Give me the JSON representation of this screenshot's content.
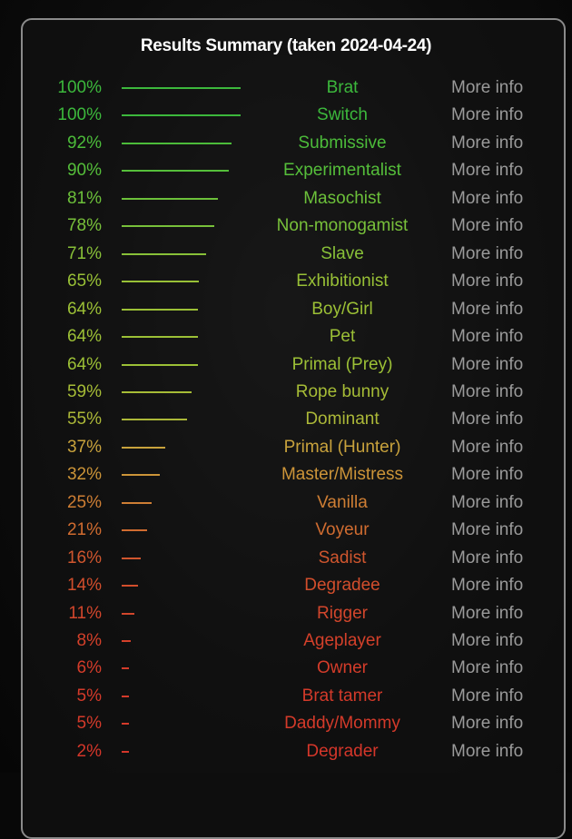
{
  "title": "Results Summary (taken 2024-04-24)",
  "more_label": "More info",
  "results": [
    {
      "pct": 100,
      "label": "100%",
      "name": "Brat",
      "color": "#3cb83c"
    },
    {
      "pct": 100,
      "label": "100%",
      "name": "Switch",
      "color": "#3cb83c"
    },
    {
      "pct": 92,
      "label": "92%",
      "name": "Submissive",
      "color": "#4cbc3a"
    },
    {
      "pct": 90,
      "label": "90%",
      "name": "Experimentalist",
      "color": "#55be3a"
    },
    {
      "pct": 81,
      "label": "81%",
      "name": "Masochist",
      "color": "#6cc03a"
    },
    {
      "pct": 78,
      "label": "78%",
      "name": "Non-monogamist",
      "color": "#78c03a"
    },
    {
      "pct": 71,
      "label": "71%",
      "name": "Slave",
      "color": "#88c038"
    },
    {
      "pct": 65,
      "label": "65%",
      "name": "Exhibitionist",
      "color": "#98c036"
    },
    {
      "pct": 64,
      "label": "64%",
      "name": "Boy/Girl",
      "color": "#9cc036"
    },
    {
      "pct": 64,
      "label": "64%",
      "name": "Pet",
      "color": "#9cc036"
    },
    {
      "pct": 64,
      "label": "64%",
      "name": "Primal (Prey)",
      "color": "#9cc036"
    },
    {
      "pct": 59,
      "label": "59%",
      "name": "Rope bunny",
      "color": "#a6bc36"
    },
    {
      "pct": 55,
      "label": "55%",
      "name": "Dominant",
      "color": "#acb838"
    },
    {
      "pct": 37,
      "label": "37%",
      "name": "Primal (Hunter)",
      "color": "#c8a23c"
    },
    {
      "pct": 32,
      "label": "32%",
      "name": "Master/Mistress",
      "color": "#cc9438"
    },
    {
      "pct": 25,
      "label": "25%",
      "name": "Vanilla",
      "color": "#ce7e34"
    },
    {
      "pct": 21,
      "label": "21%",
      "name": "Voyeur",
      "color": "#d06c30"
    },
    {
      "pct": 16,
      "label": "16%",
      "name": "Sadist",
      "color": "#d0562e"
    },
    {
      "pct": 14,
      "label": "14%",
      "name": "Degradee",
      "color": "#d24e2c"
    },
    {
      "pct": 11,
      "label": "11%",
      "name": "Rigger",
      "color": "#d2462c"
    },
    {
      "pct": 8,
      "label": "8%",
      "name": "Ageplayer",
      "color": "#d4402a"
    },
    {
      "pct": 6,
      "label": "6%",
      "name": "Owner",
      "color": "#d43c2a"
    },
    {
      "pct": 5,
      "label": "5%",
      "name": "Brat tamer",
      "color": "#d43a2a"
    },
    {
      "pct": 5,
      "label": "5%",
      "name": "Daddy/Mommy",
      "color": "#d43a2a"
    },
    {
      "pct": 2,
      "label": "2%",
      "name": "Degrader",
      "color": "#d4362a"
    }
  ]
}
